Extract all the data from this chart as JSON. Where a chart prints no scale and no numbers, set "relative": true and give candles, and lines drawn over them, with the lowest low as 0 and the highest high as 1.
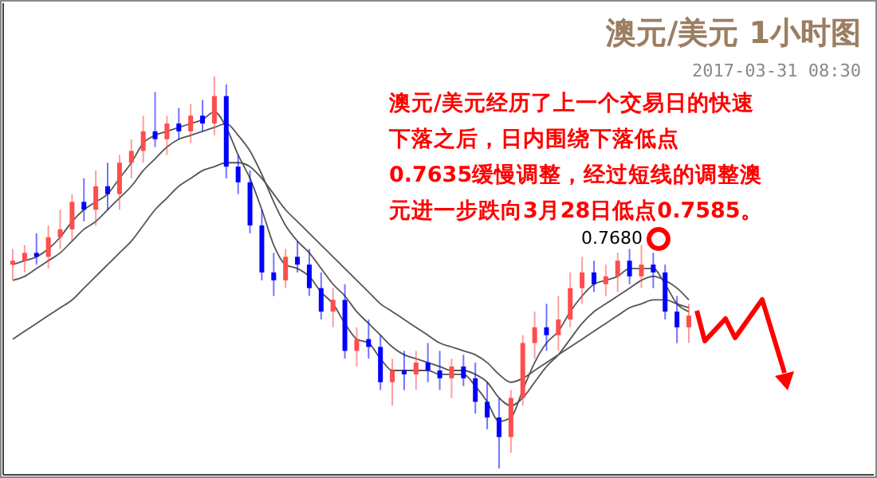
{
  "chart_data": {
    "type": "candlestick",
    "title": "澳元/美元 1小时图",
    "subtitle": "2017-03-31 08:30",
    "relative": true,
    "tick_labels": false,
    "annotations": [
      "澳元/美元经历了上一个交易日的快速下落之后，日内围绕下落低点0.7635缓慢调整，经过短线的调整澳元进一步跌向3月28日低点0.7585。",
      "0.7680"
    ],
    "categories": [
      null,
      null,
      null,
      null,
      null,
      null,
      null,
      null,
      null,
      null,
      null,
      null,
      null,
      null,
      null,
      null,
      null,
      null,
      null,
      null,
      null,
      null,
      null,
      null,
      null,
      null,
      null,
      null,
      null,
      null,
      null,
      null,
      null,
      null,
      null,
      null,
      null,
      null,
      null,
      null,
      null,
      null,
      null,
      null,
      null,
      null,
      null,
      null,
      null,
      null,
      null,
      null,
      null,
      null,
      null,
      null,
      null,
      null
    ],
    "ohlc": [
      [
        0.52,
        0.56,
        0.48,
        0.53
      ],
      [
        0.53,
        0.57,
        0.5,
        0.55
      ],
      [
        0.55,
        0.6,
        0.52,
        0.54
      ],
      [
        0.54,
        0.62,
        0.51,
        0.59
      ],
      [
        0.59,
        0.66,
        0.56,
        0.61
      ],
      [
        0.61,
        0.7,
        0.58,
        0.68
      ],
      [
        0.68,
        0.74,
        0.63,
        0.66
      ],
      [
        0.66,
        0.76,
        0.62,
        0.72
      ],
      [
        0.72,
        0.78,
        0.66,
        0.7
      ],
      [
        0.7,
        0.8,
        0.66,
        0.78
      ],
      [
        0.78,
        0.84,
        0.74,
        0.81
      ],
      [
        0.81,
        0.9,
        0.78,
        0.86
      ],
      [
        0.86,
        0.96,
        0.82,
        0.84
      ],
      [
        0.84,
        0.9,
        0.8,
        0.88
      ],
      [
        0.88,
        0.92,
        0.84,
        0.86
      ],
      [
        0.86,
        0.93,
        0.83,
        0.9
      ],
      [
        0.9,
        0.94,
        0.86,
        0.88
      ],
      [
        0.88,
        1.0,
        0.85,
        0.95
      ],
      [
        0.95,
        0.98,
        0.74,
        0.77
      ],
      [
        0.77,
        0.8,
        0.7,
        0.73
      ],
      [
        0.73,
        0.76,
        0.6,
        0.62
      ],
      [
        0.62,
        0.66,
        0.48,
        0.5
      ],
      [
        0.5,
        0.55,
        0.44,
        0.48
      ],
      [
        0.48,
        0.56,
        0.46,
        0.54
      ],
      [
        0.54,
        0.58,
        0.5,
        0.52
      ],
      [
        0.52,
        0.56,
        0.44,
        0.46
      ],
      [
        0.46,
        0.5,
        0.38,
        0.4
      ],
      [
        0.4,
        0.46,
        0.36,
        0.43
      ],
      [
        0.43,
        0.47,
        0.28,
        0.3
      ],
      [
        0.3,
        0.36,
        0.26,
        0.33
      ],
      [
        0.33,
        0.38,
        0.28,
        0.31
      ],
      [
        0.31,
        0.34,
        0.2,
        0.22
      ],
      [
        0.22,
        0.28,
        0.16,
        0.25
      ],
      [
        0.25,
        0.3,
        0.2,
        0.24
      ],
      [
        0.24,
        0.3,
        0.2,
        0.27
      ],
      [
        0.27,
        0.32,
        0.22,
        0.25
      ],
      [
        0.25,
        0.3,
        0.2,
        0.23
      ],
      [
        0.23,
        0.28,
        0.18,
        0.26
      ],
      [
        0.26,
        0.29,
        0.21,
        0.23
      ],
      [
        0.23,
        0.27,
        0.14,
        0.17
      ],
      [
        0.17,
        0.22,
        0.1,
        0.13
      ],
      [
        0.13,
        0.18,
        0.0,
        0.08
      ],
      [
        0.08,
        0.2,
        0.04,
        0.18
      ],
      [
        0.18,
        0.34,
        0.16,
        0.32
      ],
      [
        0.32,
        0.4,
        0.28,
        0.36
      ],
      [
        0.36,
        0.42,
        0.3,
        0.34
      ],
      [
        0.34,
        0.44,
        0.3,
        0.38
      ],
      [
        0.38,
        0.5,
        0.36,
        0.46
      ],
      [
        0.46,
        0.54,
        0.42,
        0.5
      ],
      [
        0.5,
        0.53,
        0.45,
        0.47
      ],
      [
        0.47,
        0.52,
        0.44,
        0.49
      ],
      [
        0.49,
        0.55,
        0.45,
        0.53
      ],
      [
        0.53,
        0.56,
        0.47,
        0.49
      ],
      [
        0.49,
        0.57,
        0.46,
        0.52
      ],
      [
        0.52,
        0.55,
        0.46,
        0.5
      ],
      [
        0.5,
        0.52,
        0.38,
        0.4
      ],
      [
        0.4,
        0.44,
        0.32,
        0.36
      ],
      [
        0.36,
        0.42,
        0.32,
        0.39
      ]
    ],
    "colors": [
      "#ff4d4d",
      "#ff4d4d",
      "#0000ff",
      "#ff4d4d",
      "#ff4d4d",
      "#ff4d4d",
      "#0000ff",
      "#ff4d4d",
      "#0000ff",
      "#ff4d4d",
      "#ff4d4d",
      "#ff4d4d",
      "#0000ff",
      "#ff4d4d",
      "#0000ff",
      "#ff4d4d",
      "#0000ff",
      "#ff4d4d",
      "#0000ff",
      "#0000ff",
      "#0000ff",
      "#0000ff",
      "#0000ff",
      "#ff4d4d",
      "#0000ff",
      "#0000ff",
      "#0000ff",
      "#ff4d4d",
      "#0000ff",
      "#ff4d4d",
      "#0000ff",
      "#0000ff",
      "#ff4d4d",
      "#0000ff",
      "#ff4d4d",
      "#0000ff",
      "#0000ff",
      "#ff4d4d",
      "#0000ff",
      "#0000ff",
      "#0000ff",
      "#0000ff",
      "#ff4d4d",
      "#ff4d4d",
      "#ff4d4d",
      "#0000ff",
      "#ff4d4d",
      "#ff4d4d",
      "#ff4d4d",
      "#0000ff",
      "#ff4d4d",
      "#ff4d4d",
      "#0000ff",
      "#ff4d4d",
      "#0000ff",
      "#0000ff",
      "#0000ff",
      "#ff4d4d"
    ],
    "series": [
      {
        "type": "line",
        "color": "#555555",
        "values": [
          0.33,
          0.35,
          0.37,
          0.39,
          0.41,
          0.43,
          0.46,
          0.49,
          0.52,
          0.55,
          0.58,
          0.62,
          0.66,
          0.69,
          0.72,
          0.74,
          0.76,
          0.77,
          0.78,
          0.78,
          0.77,
          0.74,
          0.7,
          0.66,
          0.63,
          0.6,
          0.57,
          0.54,
          0.51,
          0.48,
          0.45,
          0.42,
          0.4,
          0.38,
          0.36,
          0.34,
          0.32,
          0.31,
          0.3,
          0.29,
          0.27,
          0.24,
          0.22,
          0.23,
          0.25,
          0.27,
          0.29,
          0.31,
          0.33,
          0.35,
          0.37,
          0.39,
          0.41,
          0.42,
          0.43,
          0.43,
          0.42,
          0.41
        ]
      },
      {
        "type": "line",
        "color": "#555555",
        "values": [
          0.48,
          0.49,
          0.51,
          0.53,
          0.55,
          0.58,
          0.61,
          0.63,
          0.66,
          0.69,
          0.72,
          0.76,
          0.79,
          0.82,
          0.84,
          0.85,
          0.86,
          0.87,
          0.88,
          0.85,
          0.81,
          0.75,
          0.68,
          0.62,
          0.58,
          0.55,
          0.51,
          0.47,
          0.44,
          0.4,
          0.37,
          0.34,
          0.31,
          0.29,
          0.28,
          0.27,
          0.26,
          0.25,
          0.25,
          0.24,
          0.22,
          0.18,
          0.16,
          0.18,
          0.22,
          0.26,
          0.29,
          0.33,
          0.37,
          0.4,
          0.42,
          0.44,
          0.46,
          0.48,
          0.49,
          0.48,
          0.46,
          0.43
        ]
      },
      {
        "type": "line",
        "color": "#555555",
        "values": [
          0.52,
          0.53,
          0.54,
          0.56,
          0.59,
          0.63,
          0.66,
          0.68,
          0.7,
          0.74,
          0.78,
          0.83,
          0.85,
          0.86,
          0.87,
          0.88,
          0.89,
          0.91,
          0.87,
          0.8,
          0.74,
          0.66,
          0.57,
          0.52,
          0.51,
          0.49,
          0.45,
          0.42,
          0.37,
          0.33,
          0.32,
          0.28,
          0.25,
          0.25,
          0.25,
          0.25,
          0.24,
          0.24,
          0.24,
          0.21,
          0.17,
          0.12,
          0.13,
          0.2,
          0.27,
          0.32,
          0.35,
          0.4,
          0.44,
          0.47,
          0.48,
          0.49,
          0.51,
          0.51,
          0.51,
          0.47,
          0.42,
          0.4
        ]
      }
    ]
  }
}
